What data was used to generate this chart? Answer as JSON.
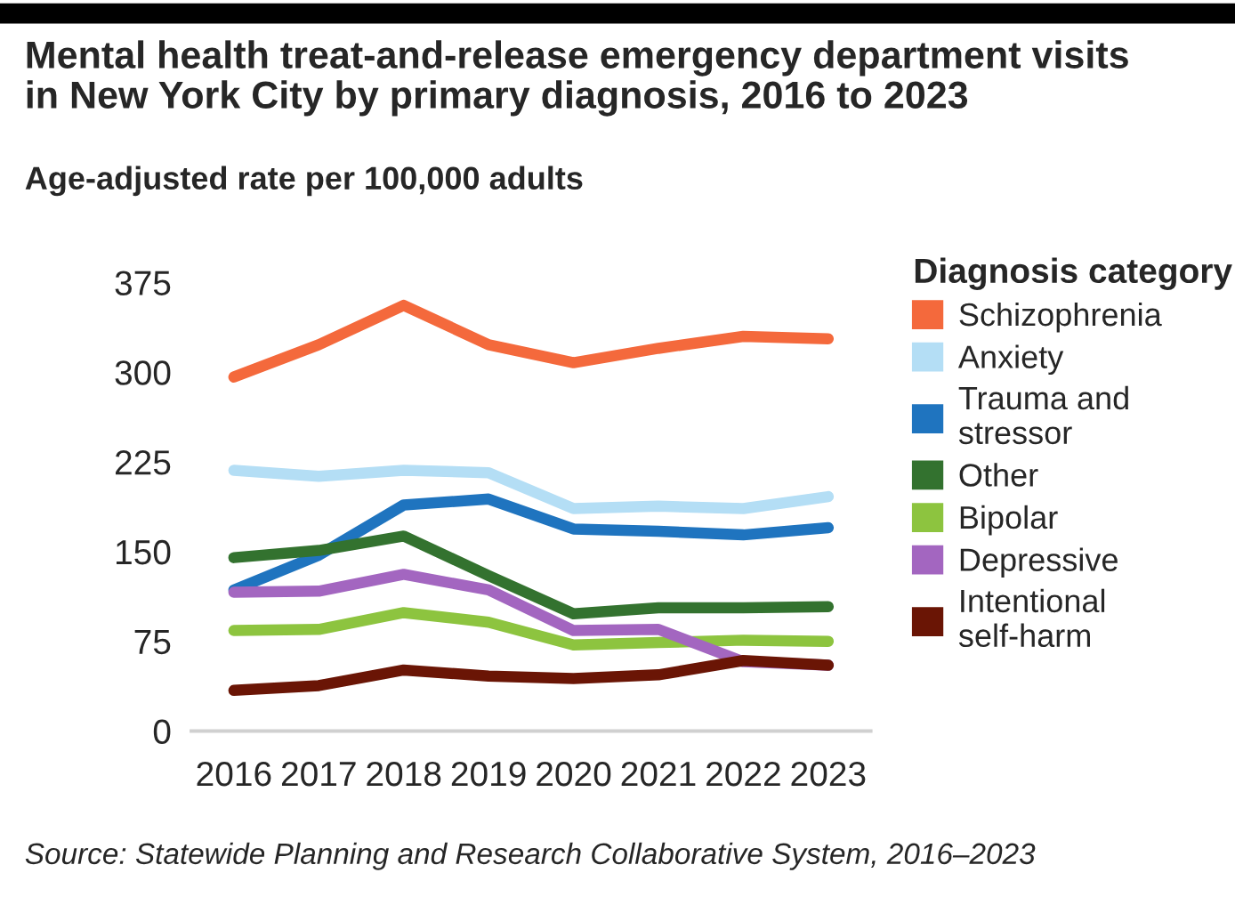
{
  "chart_data": {
    "type": "line",
    "title": "Mental health treat-and-release emergency department visits\nin New York City by primary diagnosis, 2016 to 2023",
    "subtitle": "Age-adjusted rate per 100,000 adults",
    "legend_title": "Diagnosis category",
    "annotations": [
      "Source: Statewide Planning and Research Collaborative System, 2016–2023"
    ],
    "categories": [
      "2016",
      "2017",
      "2018",
      "2019",
      "2020",
      "2021",
      "2022",
      "2023"
    ],
    "series": [
      {
        "name": "Schizophrenia",
        "color": "#f4693c",
        "values": [
          296,
          323,
          356,
          323,
          308,
          320,
          330,
          328
        ]
      },
      {
        "name": "Anxiety",
        "color": "#b4def5",
        "values": [
          218,
          213,
          218,
          216,
          186,
          188,
          186,
          196
        ]
      },
      {
        "name": "Trauma and\nstressor",
        "color": "#1f74bf",
        "values": [
          118,
          147,
          189,
          194,
          169,
          167,
          164,
          170
        ]
      },
      {
        "name": "Other",
        "color": "#33722f",
        "values": [
          145,
          151,
          163,
          130,
          98,
          103,
          103,
          104
        ]
      },
      {
        "name": "Bipolar",
        "color": "#8dc43f",
        "values": [
          84,
          85,
          99,
          91,
          72,
          74,
          76,
          75
        ]
      },
      {
        "name": "Depressive",
        "color": "#a366c0",
        "values": [
          116,
          117,
          131,
          118,
          84,
          85,
          58,
          55
        ]
      },
      {
        "name": "Intentional\nself-harm",
        "color": "#6a1505",
        "values": [
          34,
          38,
          51,
          46,
          44,
          47,
          59,
          55
        ]
      }
    ],
    "ylim": [
      0,
      375
    ],
    "yticks": [
      0,
      75,
      150,
      225,
      300,
      375
    ],
    "grid": false,
    "legend": "right",
    "marker": "none",
    "line_style": "solid"
  }
}
